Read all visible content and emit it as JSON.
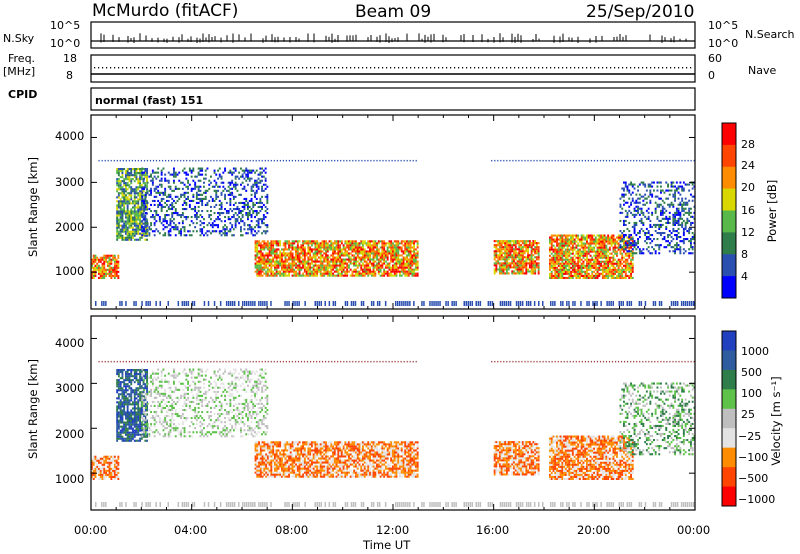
{
  "header": {
    "station": "McMurdo (fitACF)",
    "beam": "Beam 09",
    "date": "25/Sep/2010"
  },
  "noise_panel": {
    "left_label": "N.Sky",
    "right_label": "N.Search",
    "left_ticks": [
      "10^5",
      "10^0"
    ],
    "right_ticks": [
      "10^5",
      "10^0"
    ]
  },
  "freq_panel": {
    "left_label": "Freq.",
    "left_unit": "[MHz]",
    "right_label": "Nave",
    "left_ticks": [
      "18",
      "8"
    ],
    "right_ticks": [
      "60",
      "0"
    ]
  },
  "cpid": {
    "label": "CPID",
    "value": "normal (fast) 151"
  },
  "colors": {
    "power": [
      "#0000ff",
      "#2a4fb0",
      "#2e7d4a",
      "#59b84a",
      "#d8d800",
      "#ff8c00",
      "#ff4500",
      "#ff0000"
    ],
    "velocity": [
      "#2040c0",
      "#2e5c9e",
      "#2e7d4a",
      "#5ec24a",
      "#bfbfbf",
      "#e3e3e3",
      "#ff8c00",
      "#ff4500",
      "#ff0000"
    ]
  },
  "chart_data": [
    {
      "type": "heatmap",
      "name": "power",
      "ylabel": "Slant Range [km]",
      "xlabel": "Time UT",
      "ylim": [
        180,
        4500
      ],
      "xlim": [
        0,
        24
      ],
      "yticks": [
        "1000",
        "2000",
        "3000",
        "4000"
      ],
      "colorbar_label": "Power [dB]",
      "colorbar_ticks": [
        "4",
        "8",
        "12",
        "16",
        "20",
        "24",
        "28"
      ],
      "colorbar_range": [
        0,
        30
      ],
      "echo_regions": [
        {
          "t": [
            0.0,
            1.1
          ],
          "r": [
            850,
            1350
          ],
          "level": "high"
        },
        {
          "t": [
            1.0,
            2.2
          ],
          "r": [
            1700,
            3300
          ],
          "level": "medium"
        },
        {
          "t": [
            2.0,
            7.0
          ],
          "r": [
            1800,
            3300
          ],
          "level": "low"
        },
        {
          "t": [
            6.5,
            13.0
          ],
          "r": [
            900,
            1700
          ],
          "level": "high"
        },
        {
          "t": [
            16.0,
            17.8
          ],
          "r": [
            950,
            1700
          ],
          "level": "high"
        },
        {
          "t": [
            18.2,
            21.5
          ],
          "r": [
            850,
            1800
          ],
          "level": "high"
        },
        {
          "t": [
            21.0,
            24.0
          ],
          "r": [
            1400,
            3000
          ],
          "level": "low"
        }
      ]
    },
    {
      "type": "heatmap",
      "name": "velocity",
      "ylabel": "Slant Range [km]",
      "xlabel": "Time UT",
      "ylim": [
        180,
        4500
      ],
      "xlim": [
        0,
        24
      ],
      "yticks": [
        "1000",
        "2000",
        "3000",
        "4000"
      ],
      "xticks": [
        "00:00",
        "04:00",
        "08:00",
        "12:00",
        "16:00",
        "20:00",
        "00:00"
      ],
      "colorbar_label": "Velocity [m s⁻¹]",
      "colorbar_ticks": [
        "1000",
        "500",
        "100",
        "25",
        "−25",
        "−100",
        "−500",
        "−1000"
      ],
      "echo_regions": [
        {
          "t": [
            0.0,
            1.1
          ],
          "r": [
            850,
            1350
          ],
          "velocity": -150
        },
        {
          "t": [
            1.0,
            2.2
          ],
          "r": [
            1700,
            3300
          ],
          "velocity": 300
        },
        {
          "t": [
            2.0,
            7.0
          ],
          "r": [
            1800,
            3300
          ],
          "velocity": 0
        },
        {
          "t": [
            6.5,
            13.0
          ],
          "r": [
            900,
            1700
          ],
          "velocity": -200
        },
        {
          "t": [
            16.0,
            17.8
          ],
          "r": [
            950,
            1700
          ],
          "velocity": -250
        },
        {
          "t": [
            18.2,
            21.5
          ],
          "r": [
            850,
            1800
          ],
          "velocity": -100
        },
        {
          "t": [
            21.0,
            24.0
          ],
          "r": [
            1400,
            3000
          ],
          "velocity": 10
        }
      ]
    }
  ]
}
